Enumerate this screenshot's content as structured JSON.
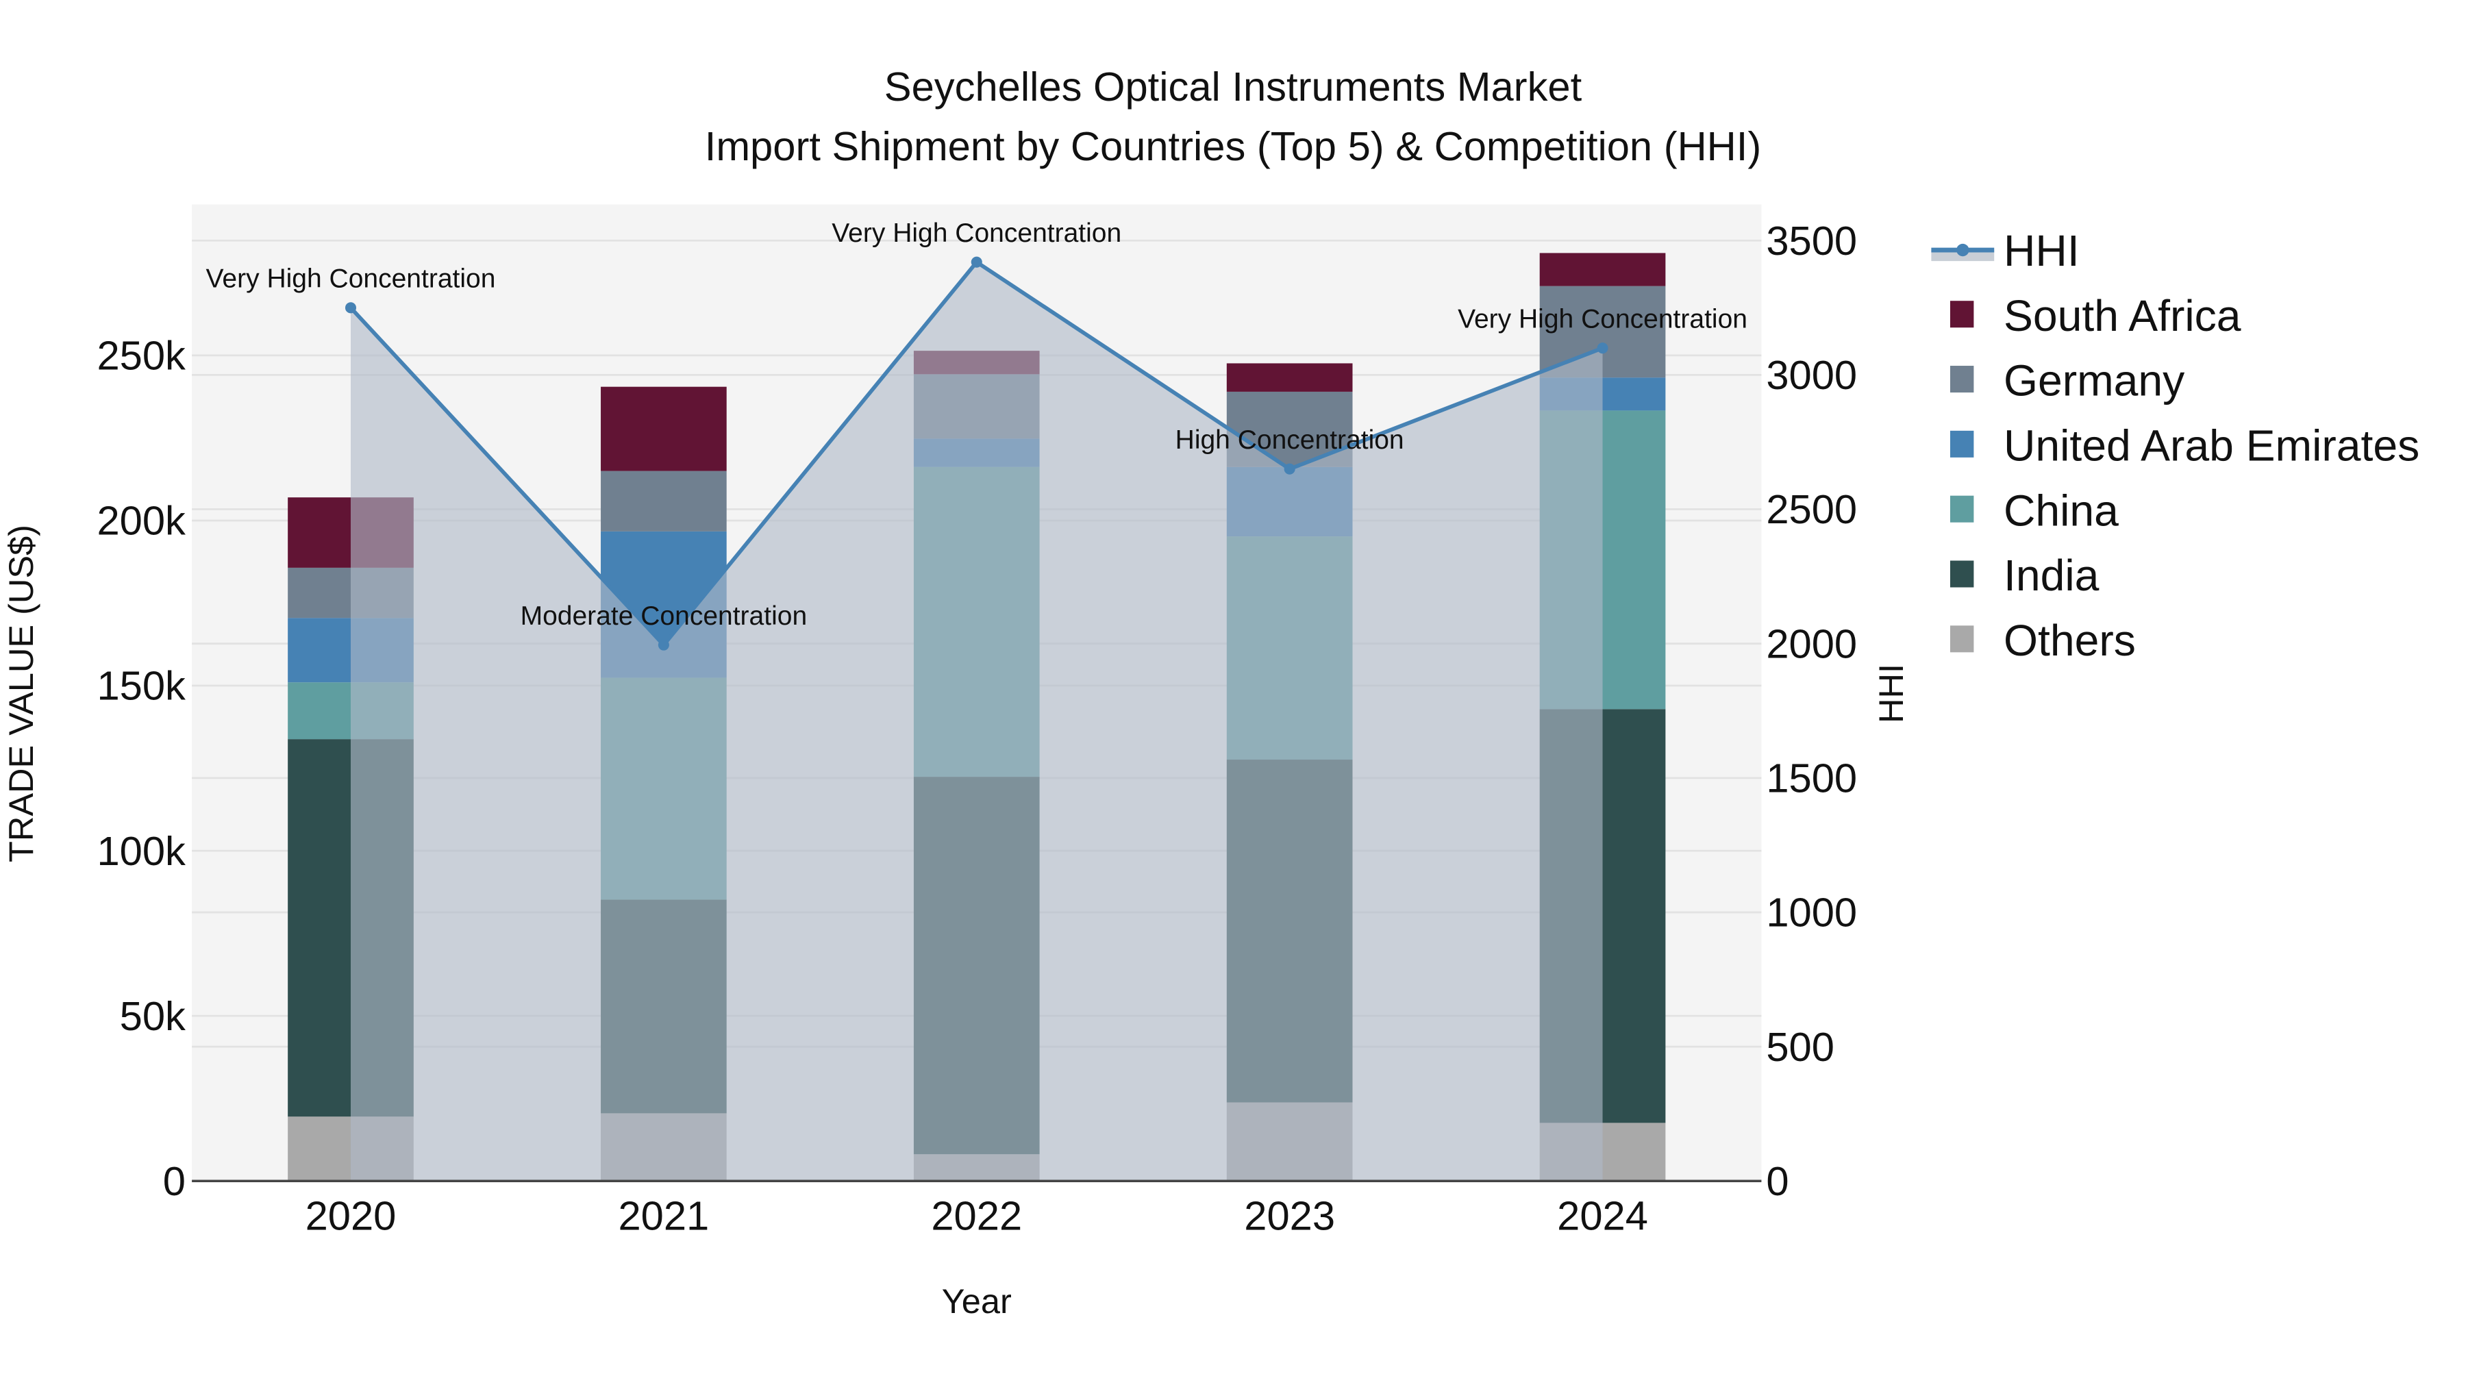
{
  "title": {
    "line1": "Seychelles Optical Instruments Market",
    "line2": "Import Shipment by Countries (Top 5) & Competition (HHI)"
  },
  "axes": {
    "x_title": "Year",
    "y_left_title": "TRADE VALUE (US$)",
    "y_right_title": "HHI",
    "y_left_ticks": [
      "0",
      "50k",
      "100k",
      "150k",
      "200k",
      "250k"
    ],
    "y_right_ticks": [
      "0",
      "500",
      "1000",
      "1500",
      "2000",
      "2500",
      "3000",
      "3500"
    ],
    "x_ticks": [
      "2020",
      "2021",
      "2022",
      "2023",
      "2024"
    ]
  },
  "legend": [
    {
      "label": "HHI",
      "kind": "line",
      "color": "#4682b4"
    },
    {
      "label": "South Africa",
      "kind": "box",
      "color": "#611434"
    },
    {
      "label": "Germany",
      "kind": "box",
      "color": "#708090"
    },
    {
      "label": "United Arab Emirates",
      "kind": "box",
      "color": "#4682b4"
    },
    {
      "label": "China",
      "kind": "box",
      "color": "#5f9ea0"
    },
    {
      "label": "India",
      "kind": "box",
      "color": "#2f4f4f"
    },
    {
      "label": "Others",
      "kind": "box",
      "color": "#a9a9a9"
    }
  ],
  "annotations": [
    {
      "year": "2020",
      "text": "Very High Concentration"
    },
    {
      "year": "2021",
      "text": "Moderate Concentration"
    },
    {
      "year": "2022",
      "text": "Very High Concentration"
    },
    {
      "year": "2023",
      "text": "High Concentration"
    },
    {
      "year": "2024",
      "text": "Very High Concentration"
    }
  ],
  "chart_data": {
    "type": "bar",
    "stacked": true,
    "title": "Seychelles Optical Instruments Market - Import Shipment by Countries (Top 5) & Competition (HHI)",
    "xlabel": "Year",
    "ylabel": "TRADE VALUE (US$)",
    "y2label": "HHI",
    "categories": [
      "2020",
      "2021",
      "2022",
      "2023",
      "2024"
    ],
    "ylim": [
      0,
      295000
    ],
    "y2lim": [
      0,
      3640
    ],
    "series": [
      {
        "name": "Others",
        "color": "#a9a9a9",
        "values": [
          19500,
          20500,
          8100,
          23800,
          17600
        ]
      },
      {
        "name": "India",
        "color": "#2f4f4f",
        "values": [
          114300,
          64700,
          114300,
          103800,
          125300
        ]
      },
      {
        "name": "China",
        "color": "#5f9ea0",
        "values": [
          17200,
          67200,
          93800,
          67600,
          90400
        ]
      },
      {
        "name": "United Arab Emirates",
        "color": "#4682b4",
        "values": [
          19500,
          44300,
          8600,
          21000,
          10000
        ]
      },
      {
        "name": "Germany",
        "color": "#708090",
        "values": [
          15200,
          18300,
          19500,
          22800,
          27700
        ]
      },
      {
        "name": "South Africa",
        "color": "#611434",
        "values": [
          21300,
          25500,
          7100,
          8600,
          10000
        ]
      }
    ],
    "line_series": {
      "name": "HHI",
      "axis": "right",
      "color": "#4682b4",
      "values": [
        3250,
        1995,
        3420,
        2650,
        3100
      ],
      "labels": [
        "Very High Concentration",
        "Moderate Concentration",
        "Very High Concentration",
        "High Concentration",
        "Very High Concentration"
      ]
    },
    "grid": true,
    "legend_position": "right"
  }
}
